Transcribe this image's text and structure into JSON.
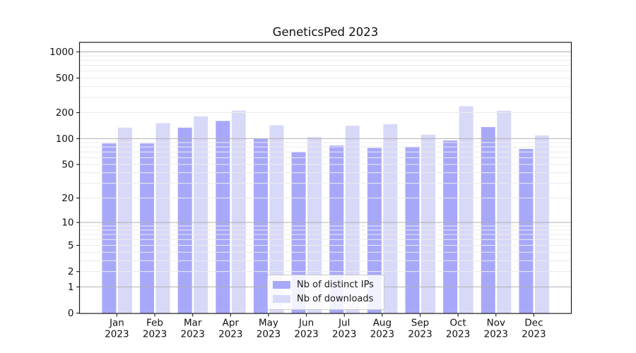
{
  "title": "GeneticsPed 2023",
  "chart_data": {
    "type": "bar",
    "title": "GeneticsPed 2023",
    "y_scale": "log10(1+x)",
    "grid": "on",
    "legend_position": "lower center",
    "categories": [
      "Jan",
      "Feb",
      "Mar",
      "Apr",
      "May",
      "Jun",
      "Jul",
      "Aug",
      "Sep",
      "Oct",
      "Nov",
      "Dec"
    ],
    "x_sublabel": "2023",
    "series": [
      {
        "name": "Nb of distinct IPs",
        "color": "#a8a8fa",
        "values": [
          88,
          88,
          134,
          160,
          100,
          70,
          83,
          78,
          80,
          95,
          136,
          76
        ]
      },
      {
        "name": "Nb of downloads",
        "color": "#d8d8f8",
        "values": [
          134,
          151,
          181,
          211,
          143,
          104,
          141,
          147,
          111,
          237,
          210,
          109
        ]
      }
    ],
    "y_ticks": [
      0,
      1,
      2,
      5,
      10,
      20,
      50,
      100,
      200,
      500,
      1000
    ],
    "y_gridlines_major": [
      1,
      10,
      100,
      1000
    ],
    "y_gridlines_minor": [
      2,
      3,
      4,
      5,
      6,
      7,
      8,
      9,
      20,
      30,
      40,
      50,
      60,
      70,
      80,
      90,
      200,
      300,
      400,
      500,
      600,
      700,
      800,
      900
    ],
    "ylim": [
      0,
      1286
    ]
  },
  "colors": {
    "gridline_major": "#b0b0b0",
    "gridline_minor": "#ececec",
    "axis": "#1a1a1a",
    "tick_label": "#111111"
  }
}
